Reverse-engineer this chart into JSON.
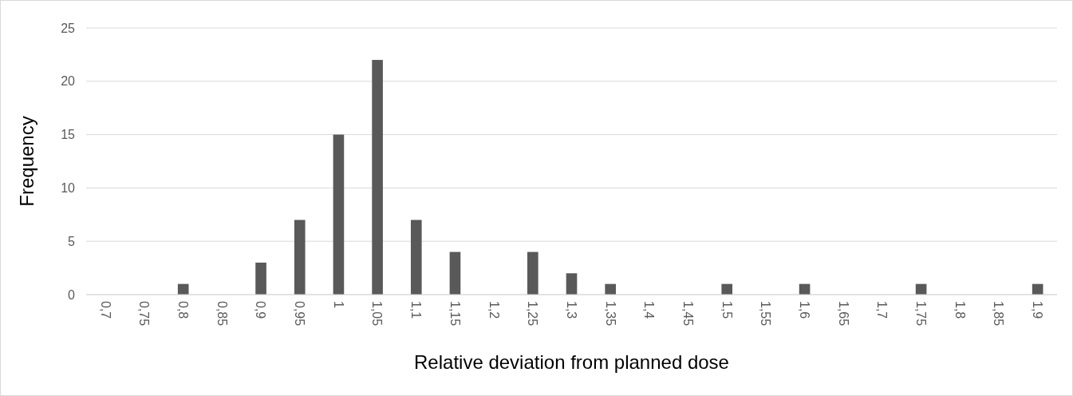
{
  "chart_data": {
    "type": "bar",
    "xlabel": "Relative deviation from planned dose",
    "ylabel": "Frequency",
    "categories": [
      "0,7",
      "0,75",
      "0,8",
      "0,85",
      "0,9",
      "0,95",
      "1",
      "1,05",
      "1,1",
      "1,15",
      "1,2",
      "1,25",
      "1,3",
      "1,35",
      "1,4",
      "1,45",
      "1,5",
      "1,55",
      "1,6",
      "1,65",
      "1,7",
      "1,75",
      "1,8",
      "1,85",
      "1,9"
    ],
    "values": [
      0,
      0,
      1,
      0,
      3,
      7,
      15,
      22,
      7,
      4,
      0,
      4,
      2,
      1,
      0,
      0,
      1,
      0,
      1,
      0,
      0,
      1,
      0,
      0,
      1
    ],
    "color": "#595959",
    "ylim": [
      0,
      25
    ],
    "yticks": [
      0,
      5,
      10,
      15,
      20,
      25
    ],
    "grid": "y"
  }
}
